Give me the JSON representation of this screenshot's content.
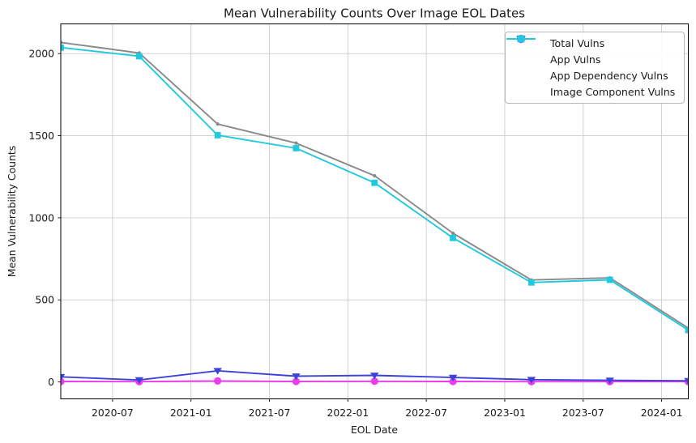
{
  "chart_data": {
    "type": "line",
    "title": "Mean Vulnerability Counts Over Image EOL Dates",
    "xlabel": "EOL Date",
    "ylabel": "Mean Vulnerability Counts",
    "x_dates": [
      "2020-03",
      "2020-09",
      "2021-03",
      "2021-09",
      "2022-03",
      "2022-09",
      "2023-03",
      "2023-09",
      "2024-03"
    ],
    "x": [
      2020.17,
      2020.67,
      2021.17,
      2021.67,
      2022.17,
      2022.67,
      2023.17,
      2023.67,
      2024.17
    ],
    "xlim": [
      2020.17,
      2024.17
    ],
    "ylim": [
      -103,
      2181
    ],
    "x_ticks": [
      2020.5,
      2021.0,
      2021.5,
      2022.0,
      2022.5,
      2023.0,
      2023.5,
      2024.0
    ],
    "x_tick_labels": [
      "2020-07",
      "2021-01",
      "2021-07",
      "2022-01",
      "2022-07",
      "2023-01",
      "2023-07",
      "2024-01"
    ],
    "y_ticks": [
      0,
      500,
      1000,
      1500,
      2000
    ],
    "grid": true,
    "legend_position": "upper right",
    "colors": {
      "grid": "#cccccc",
      "axis": "#000000",
      "text": "#1a1a1a"
    },
    "series": [
      {
        "name": "Total Vulns",
        "color": "#8a8a8a",
        "marker": "dot",
        "values": [
          2068,
          2004,
          1571,
          1455,
          1256,
          906,
          621,
          634,
          328
        ]
      },
      {
        "name": "App Vulns",
        "color": "#ec3cec",
        "marker": "circle",
        "values": [
          3,
          2,
          6,
          3,
          4,
          3,
          2,
          2,
          2
        ]
      },
      {
        "name": "App Dependency Vulns",
        "color": "#3d43da",
        "marker": "triangle-down",
        "values": [
          31,
          12,
          68,
          35,
          40,
          27,
          14,
          10,
          7
        ]
      },
      {
        "name": "Image Component Vulns",
        "color": "#1fc9e0",
        "marker": "square",
        "values": [
          2037,
          1984,
          1503,
          1424,
          1213,
          877,
          606,
          622,
          316
        ]
      }
    ]
  }
}
